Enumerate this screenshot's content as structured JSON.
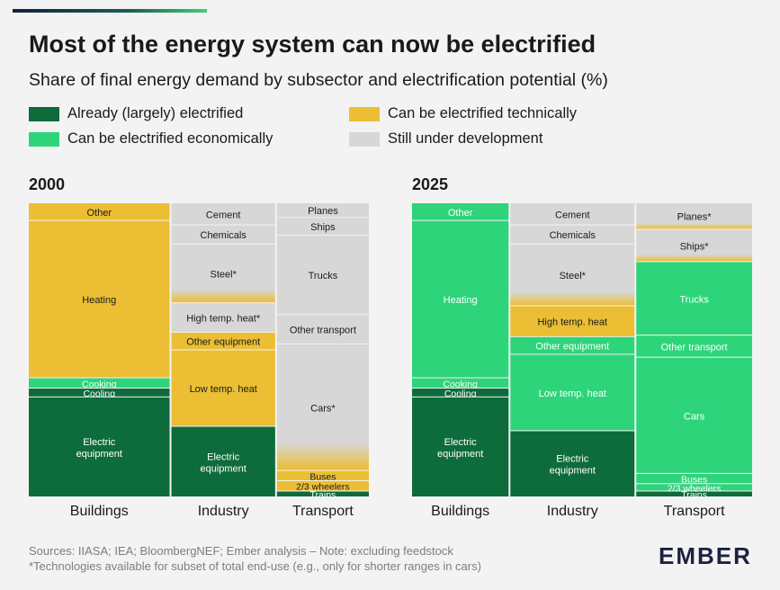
{
  "title": "Most of the energy system can now be electrified",
  "subtitle": "Share of final energy demand by subsector and electrification potential (%)",
  "legend": [
    {
      "label": "Already (largely) electrified",
      "color": "#0e6b3b"
    },
    {
      "label": "Can be electrified technically",
      "color": "#ebbe34"
    },
    {
      "label": "Can be electrified economically",
      "color": "#2ed47a"
    },
    {
      "label": "Still under development",
      "color": "#d7d7d7"
    }
  ],
  "sources": "Sources: IIASA; IEA; BloombergNEF; Ember analysis – Note: excluding feedstock",
  "footnote": "*Technologies available for subset of total end-use (e.g., only for shorter ranges in cars)",
  "brand": "EMBER",
  "colors": {
    "already": "#0e6b3b",
    "technical": "#ebbe34",
    "economic": "#2ed47a",
    "development": "#d7d7d7",
    "divider": "#ffffff",
    "text_dark": "#1a1a1a",
    "text_light": "#ffffff"
  },
  "chart_data": [
    {
      "type": "marimekko",
      "title": "2000",
      "columns": [
        {
          "sector": "Buildings",
          "width": 47.5,
          "segments": [
            {
              "label": "Other",
              "value": 6,
              "status": "technical"
            },
            {
              "label": "Heating",
              "value": 53.5,
              "status": "technical"
            },
            {
              "label": "Cooking",
              "value": 3.5,
              "status": "economic"
            },
            {
              "label": "Cooling",
              "value": 3,
              "status": "already"
            },
            {
              "label": "Electric equipment",
              "value": 34,
              "status": "already"
            }
          ]
        },
        {
          "sector": "Industry",
          "width": 35,
          "segments": [
            {
              "label": "Cement",
              "value": 7.5,
              "status": "development"
            },
            {
              "label": "Chemicals",
              "value": 6.5,
              "status": "development"
            },
            {
              "label": "Steel*",
              "value": 20,
              "status": "development",
              "fade": "technical"
            },
            {
              "label": "High temp. heat*",
              "value": 10,
              "status": "development"
            },
            {
              "label": "Other equipment",
              "value": 6,
              "status": "technical"
            },
            {
              "label": "Low temp. heat",
              "value": 26,
              "status": "technical"
            },
            {
              "label": "Electric equipment",
              "value": 24,
              "status": "already"
            }
          ]
        },
        {
          "sector": "Transport",
          "width": 31,
          "segments": [
            {
              "label": "Planes",
              "value": 5,
              "status": "development"
            },
            {
              "label": "Ships",
              "value": 6,
              "status": "development"
            },
            {
              "label": "Trucks",
              "value": 27,
              "status": "development"
            },
            {
              "label": "Other transport",
              "value": 10,
              "status": "development"
            },
            {
              "label": "Cars*",
              "value": 43,
              "status": "development",
              "fade": "technical"
            },
            {
              "label": "Buses",
              "value": 3.5,
              "status": "technical"
            },
            {
              "label": "2/3 wheelers",
              "value": 3.5,
              "status": "technical"
            },
            {
              "label": "Trains",
              "value": 2,
              "status": "already"
            }
          ]
        }
      ]
    },
    {
      "type": "marimekko",
      "title": "2025",
      "columns": [
        {
          "sector": "Buildings",
          "width": 35,
          "segments": [
            {
              "label": "Other",
              "value": 6,
              "status": "economic"
            },
            {
              "label": "Heating",
              "value": 53.5,
              "status": "economic"
            },
            {
              "label": "Cooking",
              "value": 3.5,
              "status": "economic"
            },
            {
              "label": "Cooling",
              "value": 3,
              "status": "already"
            },
            {
              "label": "Electric equipment",
              "value": 34,
              "status": "already"
            }
          ]
        },
        {
          "sector": "Industry",
          "width": 45,
          "segments": [
            {
              "label": "Cement",
              "value": 7.5,
              "status": "development"
            },
            {
              "label": "Chemicals",
              "value": 6.5,
              "status": "development"
            },
            {
              "label": "Steel*",
              "value": 21,
              "status": "development",
              "fade": "technical"
            },
            {
              "label": "High temp. heat",
              "value": 10.5,
              "status": "technical"
            },
            {
              "label": "Other equipment",
              "value": 6,
              "status": "economic"
            },
            {
              "label": "Low temp. heat",
              "value": 26,
              "status": "economic"
            },
            {
              "label": "Electric equipment",
              "value": 22.5,
              "status": "already"
            }
          ]
        },
        {
          "sector": "Transport",
          "width": 42,
          "segments": [
            {
              "label": "Planes*",
              "value": 9,
              "status": "development",
              "fade": "technical"
            },
            {
              "label": "Ships*",
              "value": 11,
              "status": "development",
              "fade": "technical"
            },
            {
              "label": "Trucks",
              "value": 25,
              "status": "economic"
            },
            {
              "label": "Other transport",
              "value": 7.5,
              "status": "economic"
            },
            {
              "label": "Cars",
              "value": 39.5,
              "status": "economic"
            },
            {
              "label": "Buses",
              "value": 3.5,
              "status": "economic"
            },
            {
              "label": "2/3 wheelers",
              "value": 2.5,
              "status": "economic"
            },
            {
              "label": "Trains",
              "value": 2,
              "status": "already"
            }
          ]
        }
      ]
    }
  ]
}
